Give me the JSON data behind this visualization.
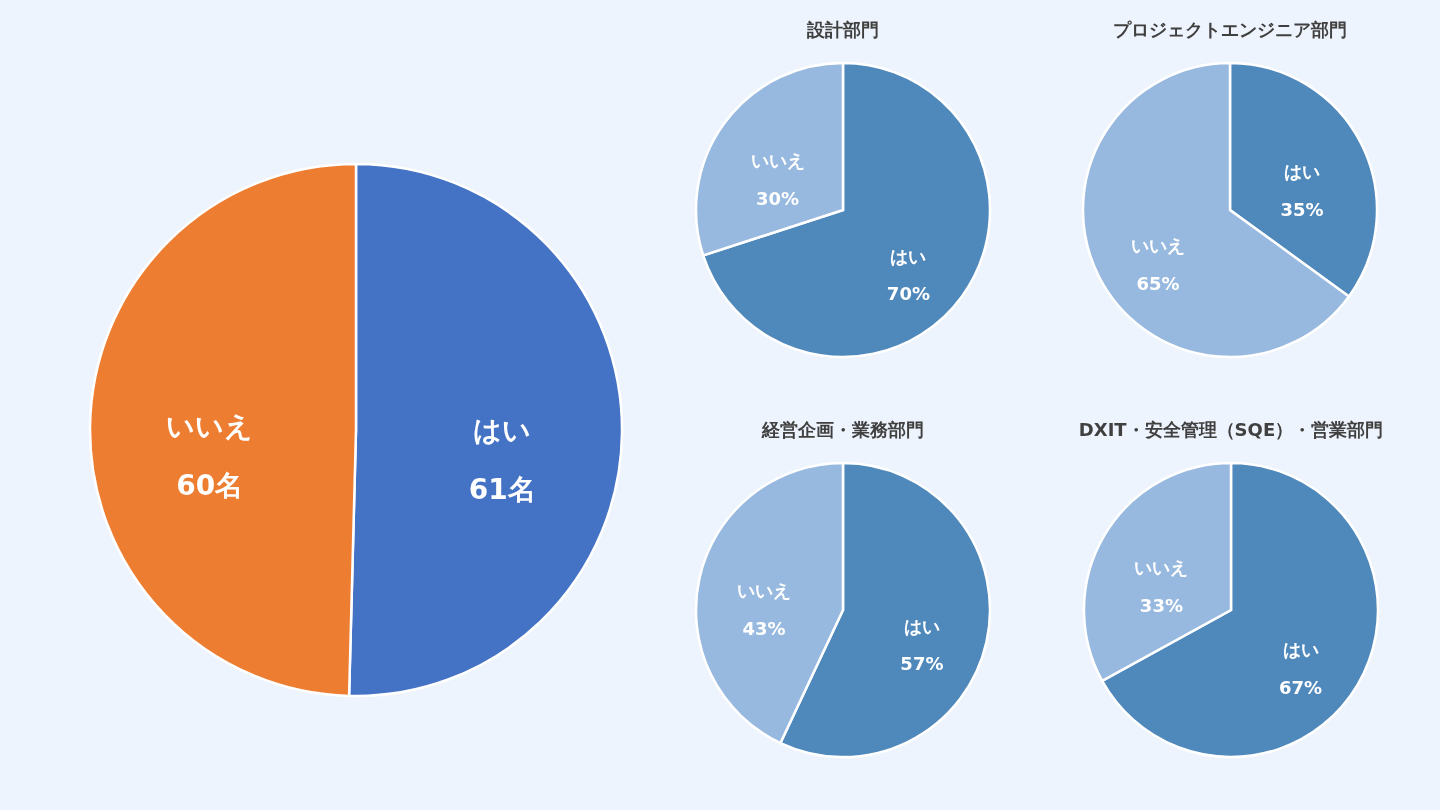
{
  "chart_data": [
    {
      "type": "pie",
      "categories": [
        "はい",
        "いいえ"
      ],
      "values": [
        61,
        60
      ],
      "value_labels": [
        "61名",
        "60名"
      ],
      "colors": [
        "#4472c4",
        "#ed7d31"
      ],
      "legend": false
    },
    {
      "type": "pie",
      "title": "設計部門",
      "categories": [
        "はい",
        "いいえ"
      ],
      "values": [
        70,
        30
      ],
      "value_labels": [
        "70%",
        "30%"
      ],
      "colors": [
        "#4f88bb",
        "#97b8df"
      ],
      "legend": false
    },
    {
      "type": "pie",
      "title": "プロジェクトエンジニア部門",
      "categories": [
        "はい",
        "いいえ"
      ],
      "values": [
        35,
        65
      ],
      "value_labels": [
        "35%",
        "65%"
      ],
      "colors": [
        "#4f88bb",
        "#97b8df"
      ],
      "legend": false
    },
    {
      "type": "pie",
      "title": "経営企画・業務部門",
      "categories": [
        "はい",
        "いいえ"
      ],
      "values": [
        57,
        43
      ],
      "value_labels": [
        "57%",
        "43%"
      ],
      "colors": [
        "#4f88bb",
        "#97b8df"
      ],
      "legend": false
    },
    {
      "type": "pie",
      "title": "DXIT・安全管理（SQE）・営業部門",
      "categories": [
        "はい",
        "いいえ"
      ],
      "values": [
        67,
        33
      ],
      "value_labels": [
        "67%",
        "33%"
      ],
      "colors": [
        "#4f88bb",
        "#97b8df"
      ],
      "legend": false
    }
  ]
}
